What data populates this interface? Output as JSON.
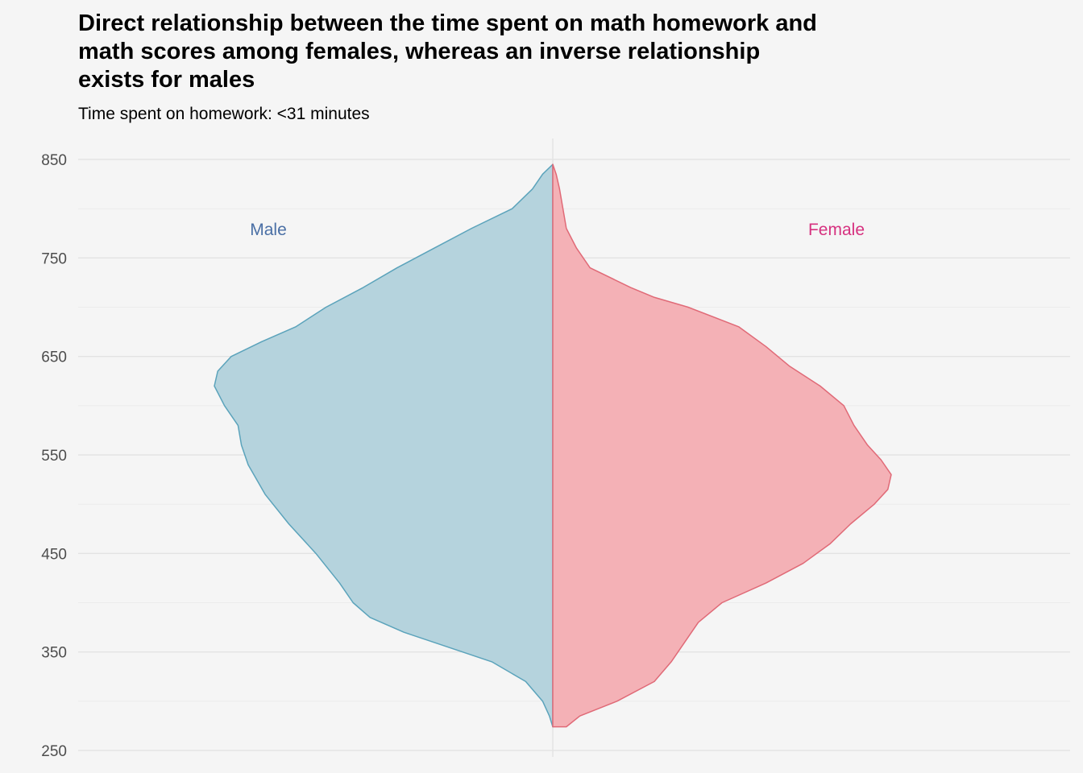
{
  "title": "Direct relationship between the time spent on math homework and\nmath scores among females, whereas an inverse relationship\nexists for males",
  "subtitle": "Time spent on homework: <31 minutes",
  "chart_data": {
    "type": "violin",
    "title": "Direct relationship between the time spent on math homework and math scores among females, whereas an inverse relationship exists for males",
    "subtitle": "Time spent on homework: <31 minutes",
    "xlabel": "",
    "ylabel": "",
    "ylim": [
      250,
      850
    ],
    "yticks": [
      250,
      350,
      450,
      550,
      650,
      750,
      850
    ],
    "grid": true,
    "series": [
      {
        "name": "Male",
        "side": "left",
        "color": "#5ba3bb",
        "fill": "#b5d3dd",
        "label_color": "#4a6fa5",
        "range": [
          274,
          845
        ],
        "density": [
          [
            274,
            0.0
          ],
          [
            285,
            0.01
          ],
          [
            300,
            0.03
          ],
          [
            320,
            0.08
          ],
          [
            340,
            0.18
          ],
          [
            355,
            0.31
          ],
          [
            370,
            0.44
          ],
          [
            385,
            0.54
          ],
          [
            400,
            0.59
          ],
          [
            420,
            0.63
          ],
          [
            450,
            0.7
          ],
          [
            480,
            0.78
          ],
          [
            510,
            0.85
          ],
          [
            540,
            0.9
          ],
          [
            560,
            0.92
          ],
          [
            580,
            0.93
          ],
          [
            600,
            0.97
          ],
          [
            620,
            1.0
          ],
          [
            635,
            0.99
          ],
          [
            650,
            0.95
          ],
          [
            665,
            0.86
          ],
          [
            680,
            0.76
          ],
          [
            700,
            0.67
          ],
          [
            720,
            0.56
          ],
          [
            740,
            0.46
          ],
          [
            760,
            0.35
          ],
          [
            780,
            0.24
          ],
          [
            800,
            0.12
          ],
          [
            820,
            0.06
          ],
          [
            835,
            0.03
          ],
          [
            845,
            0.0
          ]
        ]
      },
      {
        "name": "Female",
        "side": "right",
        "color": "#e06a77",
        "fill": "#f4b1b6",
        "label_color": "#d6317f",
        "range": [
          274,
          845
        ],
        "density": [
          [
            274,
            0.04
          ],
          [
            285,
            0.08
          ],
          [
            300,
            0.19
          ],
          [
            320,
            0.3
          ],
          [
            340,
            0.35
          ],
          [
            360,
            0.39
          ],
          [
            380,
            0.43
          ],
          [
            400,
            0.5
          ],
          [
            420,
            0.63
          ],
          [
            440,
            0.74
          ],
          [
            460,
            0.82
          ],
          [
            480,
            0.88
          ],
          [
            500,
            0.95
          ],
          [
            515,
            0.99
          ],
          [
            530,
            1.0
          ],
          [
            545,
            0.97
          ],
          [
            560,
            0.93
          ],
          [
            580,
            0.89
          ],
          [
            600,
            0.86
          ],
          [
            620,
            0.79
          ],
          [
            640,
            0.7
          ],
          [
            660,
            0.63
          ],
          [
            680,
            0.55
          ],
          [
            700,
            0.4
          ],
          [
            710,
            0.3
          ],
          [
            720,
            0.23
          ],
          [
            740,
            0.11
          ],
          [
            760,
            0.07
          ],
          [
            780,
            0.04
          ],
          [
            800,
            0.03
          ],
          [
            820,
            0.02
          ],
          [
            835,
            0.01
          ],
          [
            845,
            0.0
          ]
        ]
      }
    ]
  }
}
